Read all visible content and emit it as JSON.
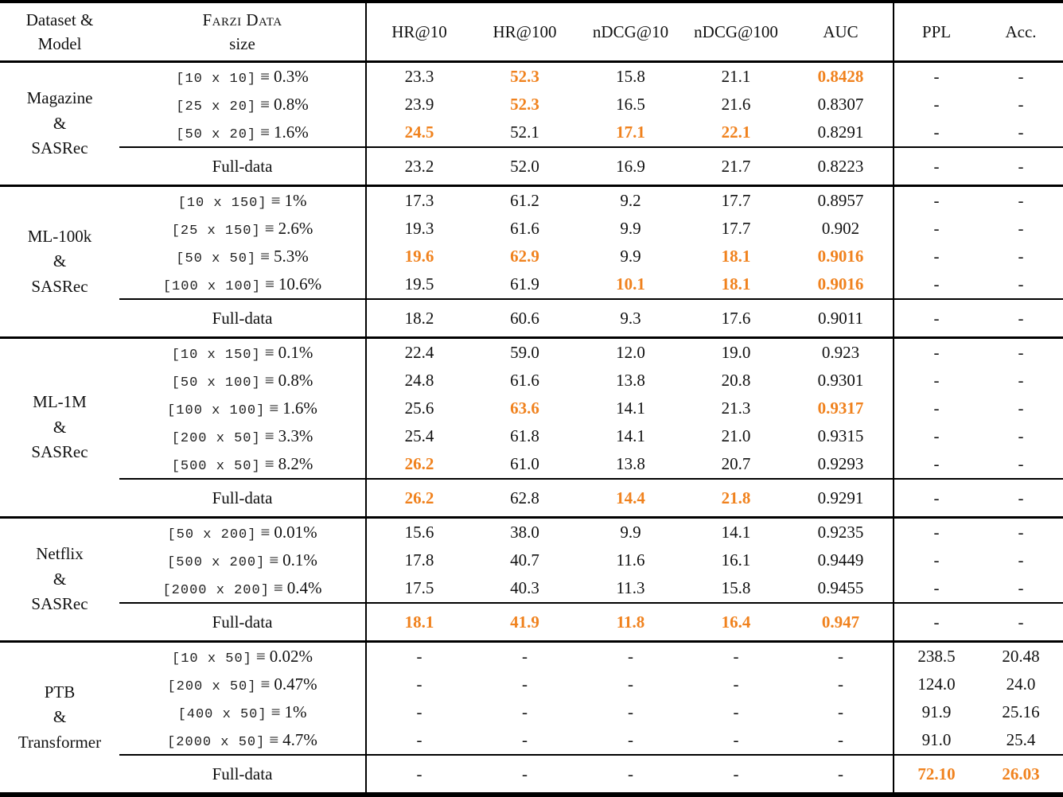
{
  "table": {
    "accent_color": "#F0821E",
    "equiv_symbol": "≡",
    "full_data_label": "Full-data",
    "header": {
      "dataset_line1": "Dataset &",
      "dataset_line2": "Model",
      "size_line1": "Farzi Data",
      "size_line2": "size",
      "metrics": [
        "HR@10",
        "HR@100",
        "nDCG@10",
        "nDCG@100",
        "AUC"
      ],
      "lm_metrics": [
        "PPL",
        "Acc."
      ]
    },
    "sections": [
      {
        "dataset_lines": [
          "Magazine",
          "&",
          "SASRec"
        ],
        "rows": [
          {
            "size": "[10 x 10]",
            "pct": "0.3%",
            "cells": [
              "23.3",
              {
                "v": "52.3",
                "hl": true
              },
              "15.8",
              "21.1",
              {
                "v": "0.8428",
                "hl": true
              },
              "-",
              "-"
            ]
          },
          {
            "size": "[25 x 20]",
            "pct": "0.8%",
            "cells": [
              "23.9",
              {
                "v": "52.3",
                "hl": true
              },
              "16.5",
              "21.6",
              "0.8307",
              "-",
              "-"
            ]
          },
          {
            "size": "[50 x 20]",
            "pct": "1.6%",
            "cells": [
              {
                "v": "24.5",
                "hl": true
              },
              "52.1",
              {
                "v": "17.1",
                "hl": true
              },
              {
                "v": "22.1",
                "hl": true
              },
              "0.8291",
              "-",
              "-"
            ]
          }
        ],
        "full_cells": [
          "23.2",
          "52.0",
          "16.9",
          "21.7",
          "0.8223",
          "-",
          "-"
        ]
      },
      {
        "dataset_lines": [
          "ML-100k",
          "&",
          "SASRec"
        ],
        "rows": [
          {
            "size": "[10 x 150]",
            "pct": "1%",
            "cells": [
              "17.3",
              "61.2",
              "9.2",
              "17.7",
              "0.8957",
              "-",
              "-"
            ]
          },
          {
            "size": "[25 x 150]",
            "pct": "2.6%",
            "cells": [
              "19.3",
              "61.6",
              "9.9",
              "17.7",
              "0.902",
              "-",
              "-"
            ]
          },
          {
            "size": "[50 x 50]",
            "pct": "5.3%",
            "cells": [
              {
                "v": "19.6",
                "hl": true
              },
              {
                "v": "62.9",
                "hl": true
              },
              "9.9",
              {
                "v": "18.1",
                "hl": true
              },
              {
                "v": "0.9016",
                "hl": true
              },
              "-",
              "-"
            ]
          },
          {
            "size": "[100 x 100]",
            "pct": "10.6%",
            "cells": [
              "19.5",
              "61.9",
              {
                "v": "10.1",
                "hl": true
              },
              {
                "v": "18.1",
                "hl": true
              },
              {
                "v": "0.9016",
                "hl": true
              },
              "-",
              "-"
            ]
          }
        ],
        "full_cells": [
          "18.2",
          "60.6",
          "9.3",
          "17.6",
          "0.9011",
          "-",
          "-"
        ]
      },
      {
        "dataset_lines": [
          "ML-1M",
          "&",
          "SASRec"
        ],
        "rows": [
          {
            "size": "[10 x 150]",
            "pct": "0.1%",
            "cells": [
              "22.4",
              "59.0",
              "12.0",
              "19.0",
              "0.923",
              "-",
              "-"
            ]
          },
          {
            "size": "[50 x 100]",
            "pct": "0.8%",
            "cells": [
              "24.8",
              "61.6",
              "13.8",
              "20.8",
              "0.9301",
              "-",
              "-"
            ]
          },
          {
            "size": "[100 x 100]",
            "pct": "1.6%",
            "cells": [
              "25.6",
              {
                "v": "63.6",
                "hl": true
              },
              "14.1",
              "21.3",
              {
                "v": "0.9317",
                "hl": true
              },
              "-",
              "-"
            ]
          },
          {
            "size": "[200 x 50]",
            "pct": "3.3%",
            "cells": [
              "25.4",
              "61.8",
              "14.1",
              "21.0",
              "0.9315",
              "-",
              "-"
            ]
          },
          {
            "size": "[500 x 50]",
            "pct": "8.2%",
            "cells": [
              {
                "v": "26.2",
                "hl": true
              },
              "61.0",
              "13.8",
              "20.7",
              "0.9293",
              "-",
              "-"
            ]
          }
        ],
        "full_cells": [
          {
            "v": "26.2",
            "hl": true
          },
          "62.8",
          {
            "v": "14.4",
            "hl": true
          },
          {
            "v": "21.8",
            "hl": true
          },
          "0.9291",
          "-",
          "-"
        ]
      },
      {
        "dataset_lines": [
          "Netflix",
          "&",
          "SASRec"
        ],
        "rows": [
          {
            "size": "[50 x 200]",
            "pct": "0.01%",
            "cells": [
              "15.6",
              "38.0",
              "9.9",
              "14.1",
              "0.9235",
              "-",
              "-"
            ]
          },
          {
            "size": "[500 x 200]",
            "pct": "0.1%",
            "cells": [
              "17.8",
              "40.7",
              "11.6",
              "16.1",
              "0.9449",
              "-",
              "-"
            ]
          },
          {
            "size": "[2000 x 200]",
            "pct": "0.4%",
            "cells": [
              "17.5",
              "40.3",
              "11.3",
              "15.8",
              "0.9455",
              "-",
              "-"
            ]
          }
        ],
        "full_cells": [
          {
            "v": "18.1",
            "hl": true
          },
          {
            "v": "41.9",
            "hl": true
          },
          {
            "v": "11.8",
            "hl": true
          },
          {
            "v": "16.4",
            "hl": true
          },
          {
            "v": "0.947",
            "hl": true
          },
          "-",
          "-"
        ]
      },
      {
        "dataset_lines": [
          "PTB",
          "&",
          "Transformer"
        ],
        "rows": [
          {
            "size": "[10 x 50]",
            "pct": "0.02%",
            "cells": [
              "-",
              "-",
              "-",
              "-",
              "-",
              "238.5",
              "20.48"
            ]
          },
          {
            "size": "[200 x 50]",
            "pct": "0.47%",
            "cells": [
              "-",
              "-",
              "-",
              "-",
              "-",
              "124.0",
              "24.0"
            ]
          },
          {
            "size": "[400 x 50]",
            "pct": "1%",
            "cells": [
              "-",
              "-",
              "-",
              "-",
              "-",
              "91.9",
              "25.16"
            ]
          },
          {
            "size": "[2000 x 50]",
            "pct": "4.7%",
            "cells": [
              "-",
              "-",
              "-",
              "-",
              "-",
              "91.0",
              "25.4"
            ]
          }
        ],
        "full_cells": [
          "-",
          "-",
          "-",
          "-",
          "-",
          {
            "v": "72.10",
            "hl": true
          },
          {
            "v": "26.03",
            "hl": true
          }
        ]
      }
    ]
  }
}
